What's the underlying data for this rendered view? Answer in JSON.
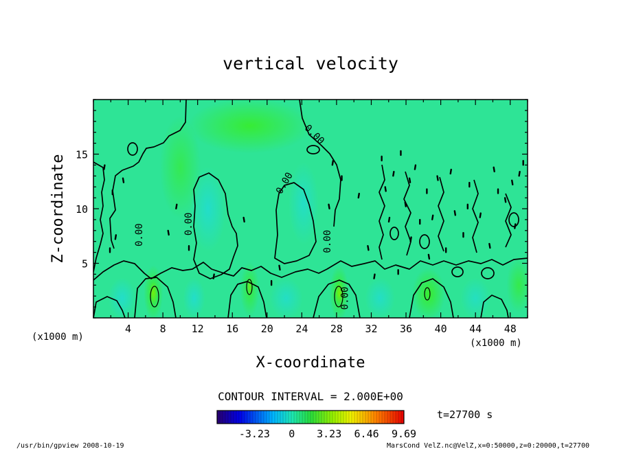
{
  "chart_data": {
    "type": "heatmap",
    "subtype": "contour",
    "title": "vertical velocity",
    "xlabel": "X-coordinate",
    "ylabel": "Z-coordinate",
    "x_unit_left": "(x1000 m)",
    "x_unit_right": "(x1000 m)",
    "xlim": [
      0,
      50
    ],
    "ylim": [
      0,
      20
    ],
    "x_ticks": [
      4,
      8,
      12,
      16,
      20,
      24,
      28,
      32,
      36,
      40,
      44,
      48
    ],
    "y_ticks": [
      5,
      10,
      15
    ],
    "x_minor_step": 2,
    "y_minor_step": 1,
    "contour_interval_text": "CONTOUR INTERVAL = 2.000E+00",
    "contour_labels": [
      {
        "text": "0.00",
        "x": 25.2,
        "z": 16.6
      },
      {
        "text": "0.00",
        "x": 22.3,
        "z": 12.2
      },
      {
        "text": "0.00",
        "x": 11.3,
        "z": 8.6
      },
      {
        "text": "0.00",
        "x": 5.6,
        "z": 7.6
      },
      {
        "text": "0.00",
        "x": 27.3,
        "z": 7.0
      },
      {
        "text": "0.00",
        "x": 29.3,
        "z": 1.8
      }
    ],
    "colorbar": {
      "min": -6.46,
      "max": 9.69,
      "tick_labels": [
        "-3.23",
        "0",
        "3.23",
        "6.46",
        "9.69"
      ],
      "tick_values": [
        -3.23,
        0,
        3.23,
        6.46,
        9.69
      ],
      "colormap": "rainbow",
      "background_value": 0.3
    },
    "time_label": "t=27700 s",
    "footer_left": "/usr/bin/gpview   2008-10-19",
    "footer_right": "MarsCond_VelZ.nc@VelZ,x=0:50000,z=0:20000,t=27700"
  }
}
